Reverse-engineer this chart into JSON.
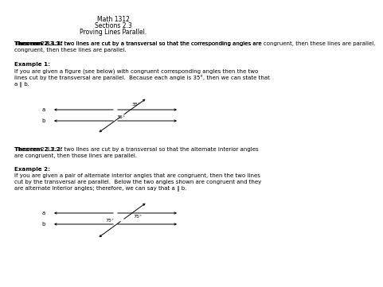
{
  "title_line1": "Math 1312",
  "title_line2": "Sections 2.3",
  "title_line3": "Proving Lines Parallel.",
  "theorem1_bold": "Theorem 2.3.1:",
  "theorem1_rest": " If two lines are cut by a transversal so that the corresponding angles are congruent, then these lines are parallel.",
  "example1_title": "Example 1:",
  "example1_line1": "If you are given a figure (see below) with congruent corresponding angles then the two",
  "example1_line2": "lines cut by the transversal are parallel.  Because each angle is 35°, then we can state that",
  "example1_line3": "a ∥ b.",
  "theorem2_bold": "Theorem 2.3.2:",
  "theorem2_rest": " If two lines are cut by a transversal so that the alternate interior angles are congruent, then those lines are parallel.",
  "example2_title": "Example 2:",
  "example2_line1": "If you are given a pair of alternate interior angles that are congruent, then the two lines",
  "example2_line2": "cut by the transversal are parallel.  Below the two angles shown are congruent and they",
  "example2_line3": "are alternate interior angles; therefore, we can say that a ∥ b.",
  "angle1": "35°",
  "angle2": "35°",
  "angle3": "75°",
  "angle4": "75°",
  "bg_color": "#ffffff",
  "text_color": "#000000"
}
